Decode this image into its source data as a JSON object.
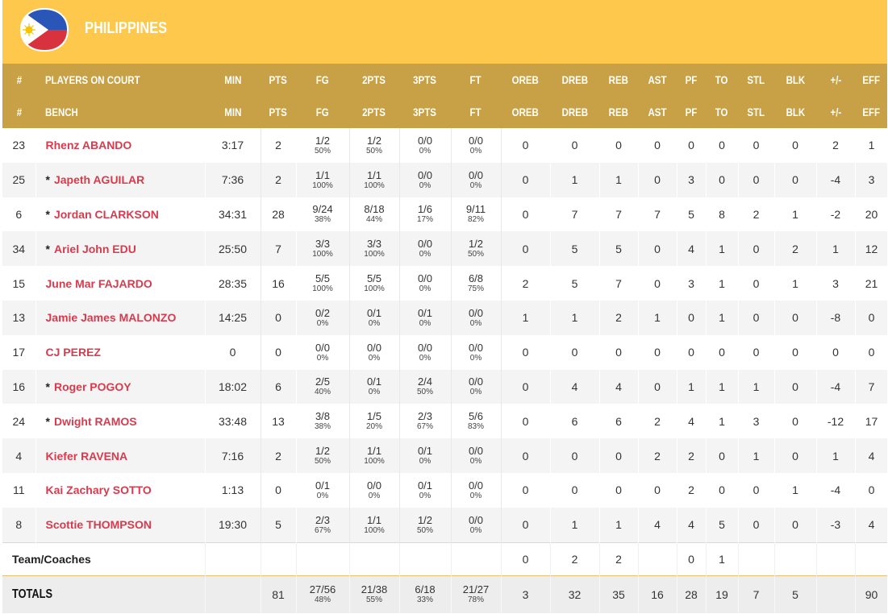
{
  "team": {
    "name": "PHILIPPINES",
    "flag_icon": "philippines-flag-icon"
  },
  "colors": {
    "header_bg": "#fdc84c",
    "column_header_bg": "#c8a046",
    "player_name": "#d63c4e"
  },
  "columns_court": [
    "#",
    "PLAYERS ON COURT",
    "MIN",
    "PTS",
    "FG",
    "2PTS",
    "3PTS",
    "FT",
    "OREB",
    "DREB",
    "REB",
    "AST",
    "PF",
    "TO",
    "STL",
    "BLK",
    "+/-",
    "EFF"
  ],
  "columns_bench": [
    "#",
    "BENCH",
    "MIN",
    "PTS",
    "FG",
    "2PTS",
    "3PTS",
    "FT",
    "OREB",
    "DREB",
    "REB",
    "AST",
    "PF",
    "TO",
    "STL",
    "BLK",
    "+/-",
    "EFF"
  ],
  "players": [
    {
      "num": "23",
      "starter": false,
      "name": "Rhenz ABANDO",
      "min": "3:17",
      "pts": "2",
      "fg": "1/2",
      "fg_pct": "50%",
      "p2": "1/2",
      "p2_pct": "50%",
      "p3": "0/0",
      "p3_pct": "0%",
      "ft": "0/0",
      "ft_pct": "0%",
      "oreb": "0",
      "dreb": "0",
      "reb": "0",
      "ast": "0",
      "pf": "0",
      "to": "0",
      "stl": "0",
      "blk": "0",
      "pm": "2",
      "eff": "1"
    },
    {
      "num": "25",
      "starter": true,
      "name": "Japeth AGUILAR",
      "min": "7:36",
      "pts": "2",
      "fg": "1/1",
      "fg_pct": "100%",
      "p2": "1/1",
      "p2_pct": "100%",
      "p3": "0/0",
      "p3_pct": "0%",
      "ft": "0/0",
      "ft_pct": "0%",
      "oreb": "0",
      "dreb": "1",
      "reb": "1",
      "ast": "0",
      "pf": "3",
      "to": "0",
      "stl": "0",
      "blk": "0",
      "pm": "-4",
      "eff": "3"
    },
    {
      "num": "6",
      "starter": true,
      "name": "Jordan CLARKSON",
      "min": "34:31",
      "pts": "28",
      "fg": "9/24",
      "fg_pct": "38%",
      "p2": "8/18",
      "p2_pct": "44%",
      "p3": "1/6",
      "p3_pct": "17%",
      "ft": "9/11",
      "ft_pct": "82%",
      "oreb": "0",
      "dreb": "7",
      "reb": "7",
      "ast": "7",
      "pf": "5",
      "to": "8",
      "stl": "2",
      "blk": "1",
      "pm": "-2",
      "eff": "20"
    },
    {
      "num": "34",
      "starter": true,
      "name": "Ariel John EDU",
      "min": "25:50",
      "pts": "7",
      "fg": "3/3",
      "fg_pct": "100%",
      "p2": "3/3",
      "p2_pct": "100%",
      "p3": "0/0",
      "p3_pct": "0%",
      "ft": "1/2",
      "ft_pct": "50%",
      "oreb": "0",
      "dreb": "5",
      "reb": "5",
      "ast": "0",
      "pf": "4",
      "to": "1",
      "stl": "0",
      "blk": "2",
      "pm": "1",
      "eff": "12"
    },
    {
      "num": "15",
      "starter": false,
      "name": "June Mar FAJARDO",
      "min": "28:35",
      "pts": "16",
      "fg": "5/5",
      "fg_pct": "100%",
      "p2": "5/5",
      "p2_pct": "100%",
      "p3": "0/0",
      "p3_pct": "0%",
      "ft": "6/8",
      "ft_pct": "75%",
      "oreb": "2",
      "dreb": "5",
      "reb": "7",
      "ast": "0",
      "pf": "3",
      "to": "1",
      "stl": "0",
      "blk": "1",
      "pm": "3",
      "eff": "21"
    },
    {
      "num": "13",
      "starter": false,
      "name": "Jamie James MALONZO",
      "min": "14:25",
      "pts": "0",
      "fg": "0/2",
      "fg_pct": "0%",
      "p2": "0/1",
      "p2_pct": "0%",
      "p3": "0/1",
      "p3_pct": "0%",
      "ft": "0/0",
      "ft_pct": "0%",
      "oreb": "1",
      "dreb": "1",
      "reb": "2",
      "ast": "1",
      "pf": "0",
      "to": "1",
      "stl": "0",
      "blk": "0",
      "pm": "-8",
      "eff": "0"
    },
    {
      "num": "17",
      "starter": false,
      "name": "CJ PEREZ",
      "min": "0",
      "pts": "0",
      "fg": "0/0",
      "fg_pct": "0%",
      "p2": "0/0",
      "p2_pct": "0%",
      "p3": "0/0",
      "p3_pct": "0%",
      "ft": "0/0",
      "ft_pct": "0%",
      "oreb": "0",
      "dreb": "0",
      "reb": "0",
      "ast": "0",
      "pf": "0",
      "to": "0",
      "stl": "0",
      "blk": "0",
      "pm": "0",
      "eff": "0"
    },
    {
      "num": "16",
      "starter": true,
      "name": "Roger POGOY",
      "min": "18:02",
      "pts": "6",
      "fg": "2/5",
      "fg_pct": "40%",
      "p2": "0/1",
      "p2_pct": "0%",
      "p3": "2/4",
      "p3_pct": "50%",
      "ft": "0/0",
      "ft_pct": "0%",
      "oreb": "0",
      "dreb": "4",
      "reb": "4",
      "ast": "0",
      "pf": "1",
      "to": "1",
      "stl": "1",
      "blk": "0",
      "pm": "-4",
      "eff": "7"
    },
    {
      "num": "24",
      "starter": true,
      "name": "Dwight RAMOS",
      "min": "33:48",
      "pts": "13",
      "fg": "3/8",
      "fg_pct": "38%",
      "p2": "1/5",
      "p2_pct": "20%",
      "p3": "2/3",
      "p3_pct": "67%",
      "ft": "5/6",
      "ft_pct": "83%",
      "oreb": "0",
      "dreb": "6",
      "reb": "6",
      "ast": "2",
      "pf": "4",
      "to": "1",
      "stl": "3",
      "blk": "0",
      "pm": "-12",
      "eff": "17"
    },
    {
      "num": "4",
      "starter": false,
      "name": "Kiefer RAVENA",
      "min": "7:16",
      "pts": "2",
      "fg": "1/2",
      "fg_pct": "50%",
      "p2": "1/1",
      "p2_pct": "100%",
      "p3": "0/1",
      "p3_pct": "0%",
      "ft": "0/0",
      "ft_pct": "0%",
      "oreb": "0",
      "dreb": "0",
      "reb": "0",
      "ast": "2",
      "pf": "2",
      "to": "0",
      "stl": "1",
      "blk": "0",
      "pm": "1",
      "eff": "4"
    },
    {
      "num": "11",
      "starter": false,
      "name": "Kai Zachary SOTTO",
      "min": "1:13",
      "pts": "0",
      "fg": "0/1",
      "fg_pct": "0%",
      "p2": "0/0",
      "p2_pct": "0%",
      "p3": "0/1",
      "p3_pct": "0%",
      "ft": "0/0",
      "ft_pct": "0%",
      "oreb": "0",
      "dreb": "0",
      "reb": "0",
      "ast": "0",
      "pf": "2",
      "to": "0",
      "stl": "0",
      "blk": "1",
      "pm": "-4",
      "eff": "0"
    },
    {
      "num": "8",
      "starter": false,
      "name": "Scottie THOMPSON",
      "min": "19:30",
      "pts": "5",
      "fg": "2/3",
      "fg_pct": "67%",
      "p2": "1/1",
      "p2_pct": "100%",
      "p3": "1/2",
      "p3_pct": "50%",
      "ft": "0/0",
      "ft_pct": "0%",
      "oreb": "0",
      "dreb": "1",
      "reb": "1",
      "ast": "4",
      "pf": "4",
      "to": "5",
      "stl": "0",
      "blk": "0",
      "pm": "-3",
      "eff": "4"
    }
  ],
  "team_coaches": {
    "label": "Team/Coaches",
    "oreb": "0",
    "dreb": "2",
    "reb": "2",
    "pf": "0",
    "to": "1"
  },
  "totals": {
    "label": "TOTALS",
    "pts": "81",
    "fg": "27/56",
    "fg_pct": "48%",
    "p2": "21/38",
    "p2_pct": "55%",
    "p3": "6/18",
    "p3_pct": "33%",
    "ft": "21/27",
    "ft_pct": "78%",
    "oreb": "3",
    "dreb": "32",
    "reb": "35",
    "ast": "16",
    "pf": "28",
    "to": "19",
    "stl": "7",
    "blk": "5",
    "eff": "90"
  }
}
